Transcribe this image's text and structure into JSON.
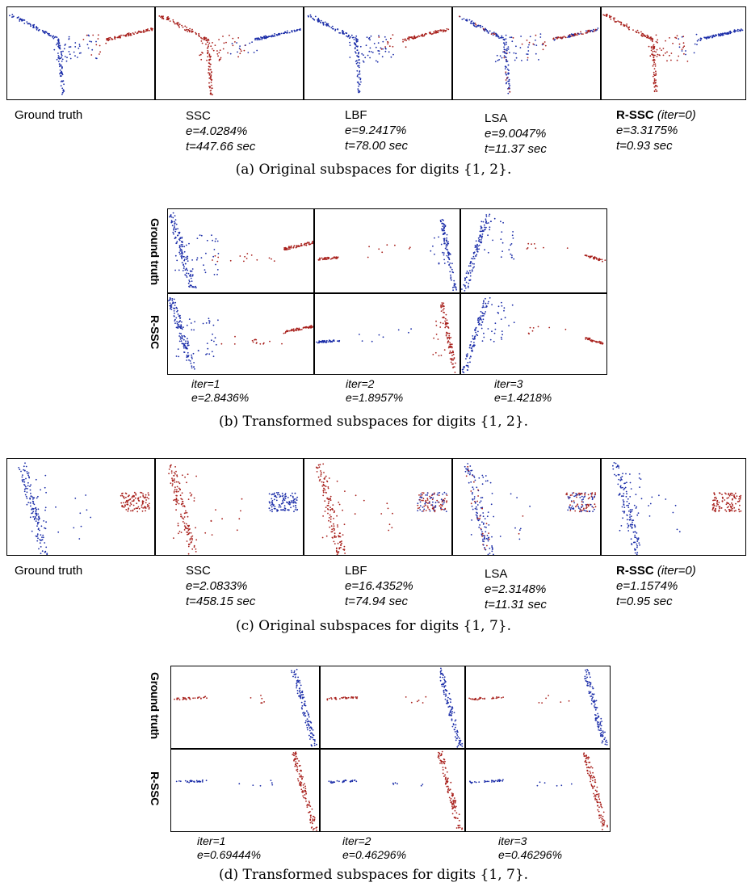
{
  "colors": {
    "cluster_a": "#1a2ca8",
    "cluster_b": "#a8201c"
  },
  "figure_a": {
    "caption": "(a) Original subspaces for digits {1, 2}.",
    "methods": [
      {
        "name": "Ground truth"
      },
      {
        "name": "SSC",
        "e": "e=4.0284%",
        "t": "t=447.66 sec"
      },
      {
        "name": "LBF",
        "e": "e=9.2417%",
        "t": "t=78.00 sec"
      },
      {
        "name": "LSA",
        "e": "e=9.0047%",
        "t": "t=11.37 sec"
      },
      {
        "name": "R-SSC",
        "iter_note": "(iter=0)",
        "e": "e=3.3175%",
        "t": "t=0.93 sec"
      }
    ]
  },
  "figure_b": {
    "caption": "(b) Transformed subspaces for digits {1, 2}.",
    "row_labels": [
      "Ground truth",
      "R-SSC"
    ],
    "iterations": [
      {
        "iter": "iter=1",
        "e": "e=2.8436%"
      },
      {
        "iter": "iter=2",
        "e": "e=1.8957%"
      },
      {
        "iter": "iter=3",
        "e": "e=1.4218%"
      }
    ]
  },
  "figure_c": {
    "caption": "(c) Original subspaces for digits {1, 7}.",
    "methods": [
      {
        "name": "Ground truth"
      },
      {
        "name": "SSC",
        "e": "e=2.0833%",
        "t": "t=458.15 sec"
      },
      {
        "name": "LBF",
        "e": "e=16.4352%",
        "t": "t=74.94 sec"
      },
      {
        "name": "LSA",
        "e": "e=2.3148%",
        "t": "t=11.31 sec"
      },
      {
        "name": "R-SSC",
        "iter_note": "(iter=0)",
        "e": "e=1.1574%",
        "t": "t=0.95 sec"
      }
    ]
  },
  "figure_d": {
    "caption": "(d) Transformed subspaces for digits {1, 7}.",
    "row_labels": [
      "Ground truth",
      "R-SSC"
    ],
    "iterations": [
      {
        "iter": "iter=1",
        "e": "e=0.69444%"
      },
      {
        "iter": "iter=2",
        "e": "e=0.46296%"
      },
      {
        "iter": "iter=3",
        "e": "e=0.46296%"
      }
    ]
  }
}
